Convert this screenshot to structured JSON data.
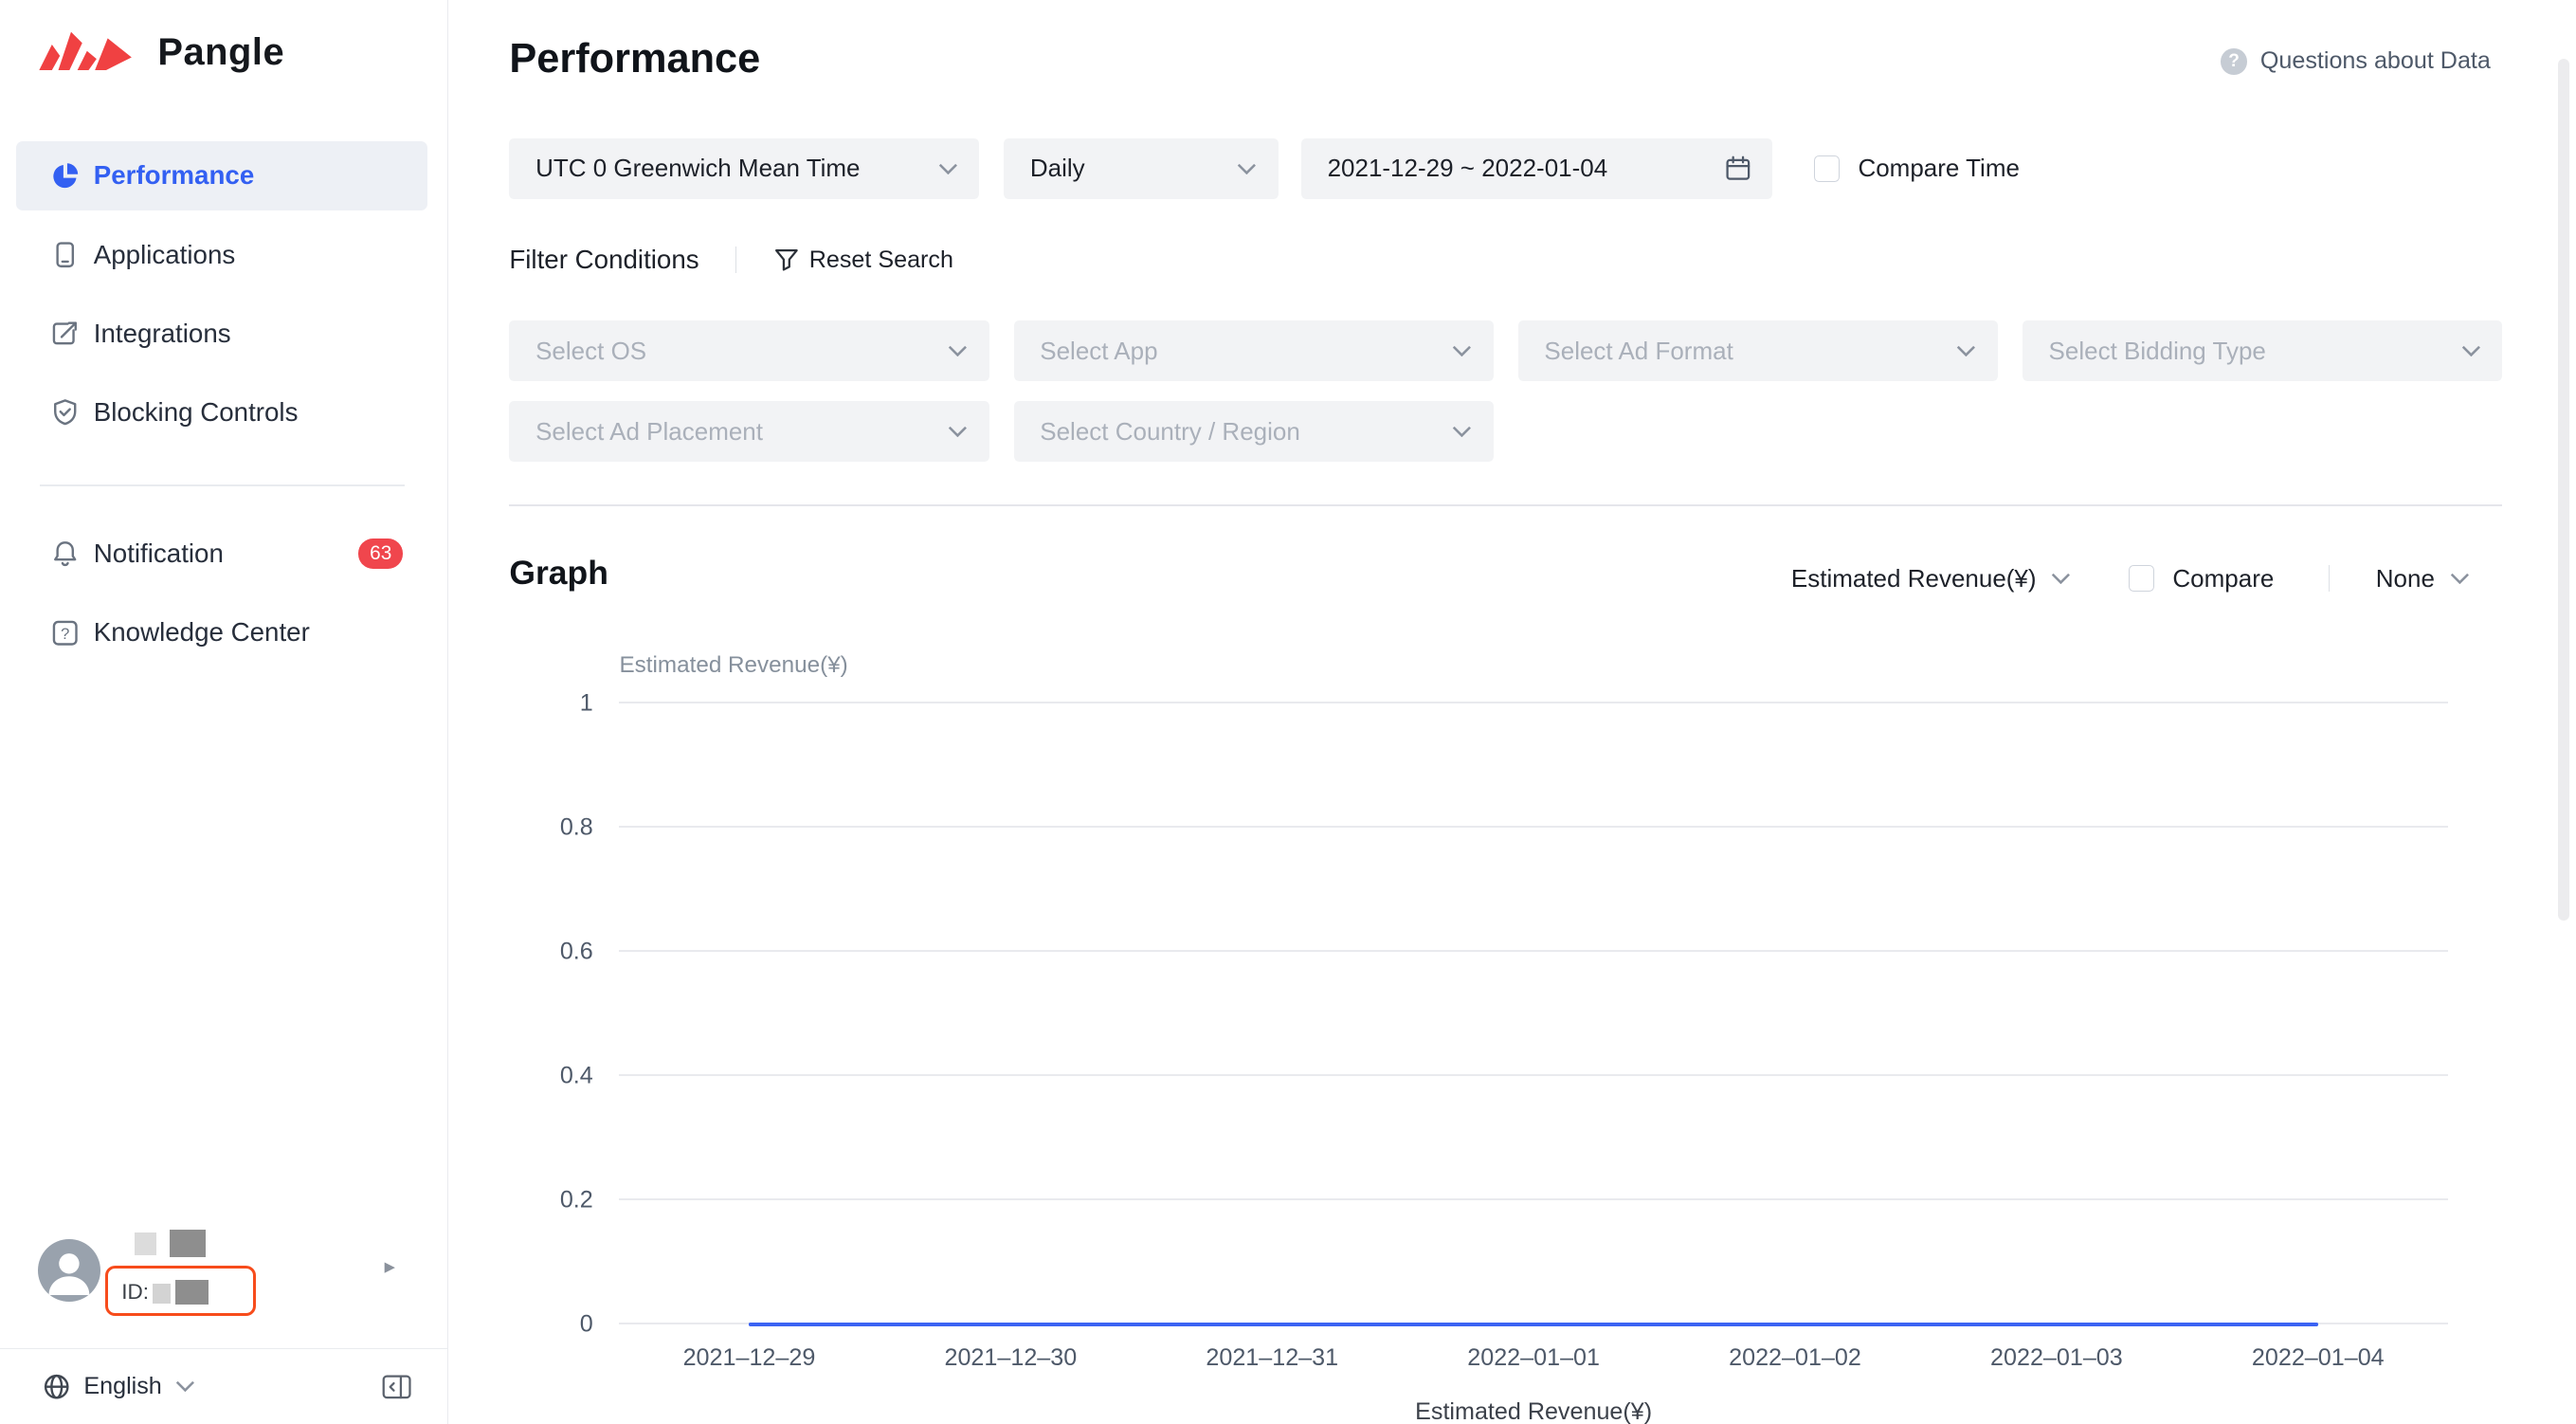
{
  "brand": {
    "name": "Pangle"
  },
  "colors": {
    "accent": "#3360f2",
    "badge": "#f0464d",
    "annotation": "#f74c1c",
    "line": "#3b63f3",
    "filter_bg": "#f2f3f5"
  },
  "sidebar": {
    "nav": [
      {
        "label": "Performance",
        "icon": "pie-chart-icon",
        "active": true
      },
      {
        "label": "Applications",
        "icon": "applications-icon",
        "active": false
      },
      {
        "label": "Integrations",
        "icon": "integrations-icon",
        "active": false
      },
      {
        "label": "Blocking Controls",
        "icon": "shield-icon",
        "active": false
      }
    ],
    "secondary_nav": [
      {
        "label": "Notification",
        "icon": "bell-icon",
        "badge": "63"
      },
      {
        "label": "Knowledge Center",
        "icon": "question-square-icon"
      }
    ],
    "user": {
      "id_prefix": "ID:"
    },
    "footer": {
      "language": "English"
    }
  },
  "header": {
    "title": "Performance",
    "help": "Questions about Data"
  },
  "filters": {
    "timezone": "UTC 0 Greenwich Mean Time",
    "granularity": "Daily",
    "date_range": "2021-12-29 ~ 2022-01-04",
    "compare_time_label": "Compare Time",
    "section_label": "Filter Conditions",
    "reset_label": "Reset Search",
    "selects": [
      {
        "placeholder": "Select OS"
      },
      {
        "placeholder": "Select App"
      },
      {
        "placeholder": "Select Ad Format"
      },
      {
        "placeholder": "Select Bidding Type"
      },
      {
        "placeholder": "Select Ad Placement"
      },
      {
        "placeholder": "Select Country / Region"
      }
    ]
  },
  "graph": {
    "heading": "Graph",
    "metric": "Estimated Revenue(¥)",
    "compare_label": "Compare",
    "dimension": "None"
  },
  "chart_data": {
    "type": "line",
    "ylabel": "Estimated Revenue(¥)",
    "x": [
      "2021–12–29",
      "2021–12–30",
      "2021–12–31",
      "2022–01–01",
      "2022–01–02",
      "2022–01–03",
      "2022–01–04"
    ],
    "series": [
      {
        "name": "Estimated Revenue(¥)",
        "values": [
          0,
          0,
          0,
          0,
          0,
          0,
          0
        ]
      }
    ],
    "ylim": [
      0,
      1
    ],
    "yticks": [
      0,
      0.2,
      0.4,
      0.6,
      0.8,
      1
    ],
    "grid": true,
    "legend": "Estimated Revenue(¥)",
    "legend_position": "bottom",
    "line_color": "#3b63f3"
  }
}
